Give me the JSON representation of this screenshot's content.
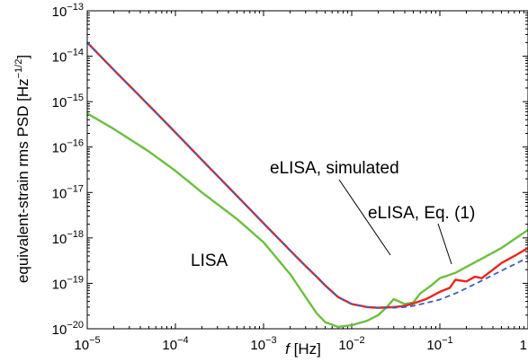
{
  "chart_data": {
    "type": "line",
    "xlabel_f": "f",
    "xlabel_rest": " [Hz]",
    "ylabel_main": "equivalent-strain rms PSD [Hz",
    "ylabel_exp": "−1/2",
    "ylabel_close": "]",
    "x_scale": "log",
    "y_scale": "log",
    "xlim": [
      1e-05,
      1
    ],
    "ylim": [
      1e-20,
      1e-13
    ],
    "x_ticks": [
      {
        "value": 1e-05,
        "base": "10",
        "exp": "−5"
      },
      {
        "value": 0.0001,
        "base": "10",
        "exp": "−4"
      },
      {
        "value": 0.001,
        "base": "10",
        "exp": "−3"
      },
      {
        "value": 0.01,
        "base": "10",
        "exp": "−2"
      },
      {
        "value": 0.1,
        "base": "10",
        "exp": "−1"
      },
      {
        "value": 1,
        "base": "1",
        "exp": ""
      }
    ],
    "y_ticks": [
      {
        "value": 1e-13,
        "base": "10",
        "exp": "−13"
      },
      {
        "value": 1e-14,
        "base": "10",
        "exp": "−14"
      },
      {
        "value": 1e-15,
        "base": "10",
        "exp": "−15"
      },
      {
        "value": 1e-16,
        "base": "10",
        "exp": "−16"
      },
      {
        "value": 1e-17,
        "base": "10",
        "exp": "−17"
      },
      {
        "value": 1e-18,
        "base": "10",
        "exp": "−18"
      },
      {
        "value": 1e-19,
        "base": "10",
        "exp": "−19"
      },
      {
        "value": 1e-20,
        "base": "10",
        "exp": "−20"
      }
    ],
    "annotations": {
      "lisa": "LISA",
      "elisa_sim": "eLISA, simulated",
      "elisa_eq": "eLISA, Eq. (1)"
    },
    "series": [
      {
        "name": "LISA",
        "color": "#6cbf3f",
        "style": "solid",
        "x": [
          1e-05,
          2e-05,
          5e-05,
          0.0001,
          0.0002,
          0.0005,
          0.001,
          0.002,
          0.003,
          0.004,
          0.005,
          0.007,
          0.01,
          0.015,
          0.02,
          0.025,
          0.03,
          0.04,
          0.05,
          0.06,
          0.08,
          0.1,
          0.15,
          0.2,
          0.3,
          0.5,
          1
        ],
        "y": [
          5.5e-16,
          2.5e-16,
          8e-17,
          3e-17,
          1e-17,
          2.6e-18,
          8e-19,
          1.6e-19,
          5e-20,
          2.2e-20,
          1.4e-20,
          1.1e-20,
          1.2e-20,
          1.5e-20,
          2e-20,
          3e-20,
          4.5e-20,
          3.5e-20,
          3.8e-20,
          6e-20,
          9e-20,
          1.3e-19,
          1.7e-19,
          2.3e-19,
          3.5e-19,
          6e-19,
          1.5e-18
        ]
      },
      {
        "name": "eLISA, simulated",
        "color": "#e8261f",
        "style": "solid",
        "x": [
          1e-05,
          2e-05,
          5e-05,
          0.0001,
          0.0002,
          0.0005,
          0.001,
          0.002,
          0.003,
          0.004,
          0.005,
          0.007,
          0.01,
          0.015,
          0.02,
          0.03,
          0.04,
          0.05,
          0.07,
          0.1,
          0.13,
          0.15,
          0.2,
          0.25,
          0.3,
          0.4,
          0.5,
          0.7,
          1
        ],
        "y": [
          2e-14,
          5e-15,
          8.3e-16,
          2.1e-16,
          5.2e-17,
          8.4e-18,
          2.1e-18,
          5.3e-19,
          2.4e-19,
          1.4e-19,
          9e-20,
          5e-20,
          3.5e-20,
          3e-20,
          2.9e-20,
          3e-20,
          3.2e-20,
          3.6e-20,
          4.5e-20,
          6.5e-20,
          8e-20,
          1.2e-19,
          1.1e-19,
          1.4e-19,
          1.3e-19,
          2e-19,
          2.8e-19,
          4e-19,
          6e-19
        ]
      },
      {
        "name": "eLISA, Eq. (1)",
        "color": "#3b5fb8",
        "style": "dashed",
        "x": [
          1e-05,
          2e-05,
          5e-05,
          0.0001,
          0.0002,
          0.0005,
          0.001,
          0.002,
          0.003,
          0.004,
          0.005,
          0.007,
          0.01,
          0.015,
          0.02,
          0.03,
          0.04,
          0.05,
          0.07,
          0.1,
          0.15,
          0.2,
          0.3,
          0.5,
          0.7,
          1
        ],
        "y": [
          2e-14,
          5e-15,
          8.3e-16,
          2.1e-16,
          5.2e-17,
          8.4e-18,
          2.1e-18,
          5.3e-19,
          2.4e-19,
          1.4e-19,
          9e-20,
          5e-20,
          3.5e-20,
          3e-20,
          2.9e-20,
          2.9e-20,
          3e-20,
          3.2e-20,
          3.7e-20,
          4.4e-20,
          6e-20,
          7.8e-20,
          1.15e-19,
          1.9e-19,
          2.6e-19,
          3.7e-19
        ]
      }
    ]
  }
}
